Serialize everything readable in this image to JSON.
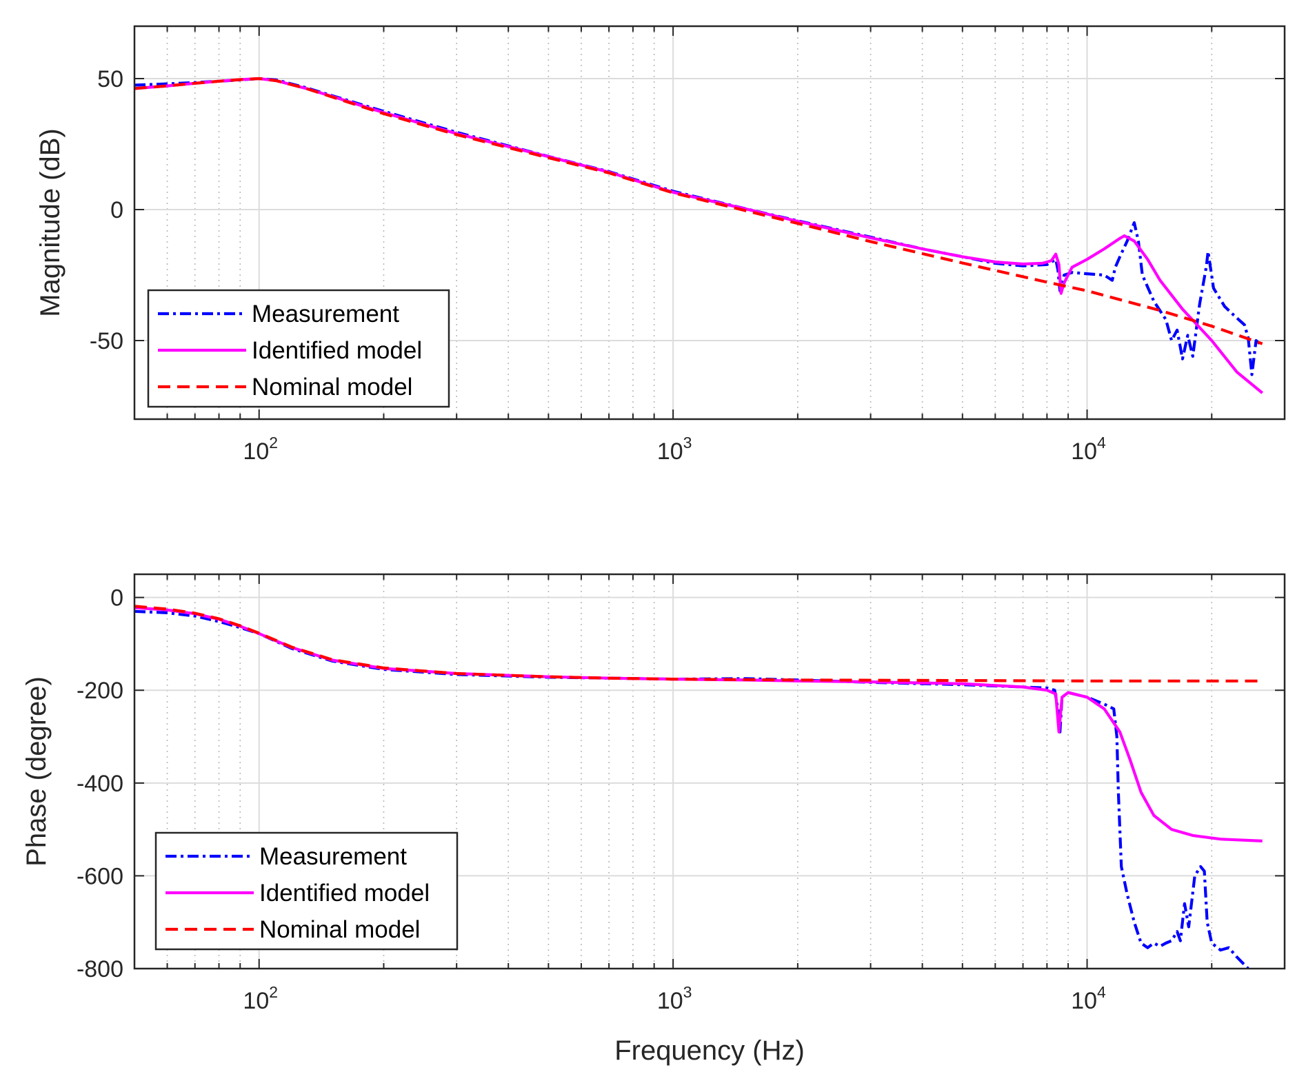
{
  "chart_data": [
    {
      "type": "line",
      "name": "magnitude",
      "xscale": "log",
      "xlim": [
        50,
        30000
      ],
      "ylim": [
        -80,
        70
      ],
      "xlabel": "",
      "ylabel": "Magnitude (dB)",
      "xticks": [
        100,
        1000,
        10000
      ],
      "xtick_labels": [
        {
          "base": "10",
          "exp": "2"
        },
        {
          "base": "10",
          "exp": "3"
        },
        {
          "base": "10",
          "exp": "4"
        }
      ],
      "yticks": [
        50,
        0,
        -50
      ],
      "ytick_labels": [
        "50",
        "0",
        "-50"
      ],
      "grid": true,
      "legend_location": "lower-left",
      "series": [
        {
          "name": "Measurement",
          "color": "#0000ff",
          "style": "dashdot",
          "points": [
            [
              50,
              47.5
            ],
            [
              60,
              48
            ],
            [
              70,
              48.5
            ],
            [
              80,
              49
            ],
            [
              90,
              49.5
            ],
            [
              100,
              50
            ],
            [
              110,
              49.5
            ],
            [
              130,
              46.5
            ],
            [
              150,
              43.5
            ],
            [
              200,
              37.5
            ],
            [
              300,
              29.5
            ],
            [
              500,
              20.3
            ],
            [
              700,
              14.5
            ],
            [
              1000,
              7
            ],
            [
              1500,
              0.3
            ],
            [
              2000,
              -4.3
            ],
            [
              3000,
              -10.5
            ],
            [
              4000,
              -15
            ],
            [
              5000,
              -18
            ],
            [
              6000,
              -20.5
            ],
            [
              7000,
              -21.5
            ],
            [
              8000,
              -21
            ],
            [
              8400,
              -19
            ],
            [
              8500,
              -23
            ],
            [
              8600,
              -31
            ],
            [
              8800,
              -25
            ],
            [
              9200,
              -24
            ],
            [
              10000,
              -24.5
            ],
            [
              11000,
              -25
            ],
            [
              11500,
              -27
            ],
            [
              11700,
              -22
            ],
            [
              12000,
              -18
            ],
            [
              12500,
              -12
            ],
            [
              13000,
              -5
            ],
            [
              13300,
              -12
            ],
            [
              13600,
              -25
            ],
            [
              14500,
              -35
            ],
            [
              15500,
              -42
            ],
            [
              16000,
              -50
            ],
            [
              16500,
              -46
            ],
            [
              17000,
              -57
            ],
            [
              17500,
              -48
            ],
            [
              18000,
              -56
            ],
            [
              18700,
              -36
            ],
            [
              19400,
              -22
            ],
            [
              19600,
              -16
            ],
            [
              20200,
              -30
            ],
            [
              21500,
              -37
            ],
            [
              22500,
              -40
            ],
            [
              24000,
              -44
            ],
            [
              24500,
              -49
            ],
            [
              25000,
              -63
            ],
            [
              25600,
              -50
            ],
            [
              26500,
              -52
            ]
          ]
        },
        {
          "name": "Identified model",
          "color": "#ff00ff",
          "style": "solid",
          "points": [
            [
              50,
              46.2
            ],
            [
              60,
              47.2
            ],
            [
              70,
              48.2
            ],
            [
              80,
              49
            ],
            [
              90,
              49.6
            ],
            [
              100,
              50
            ],
            [
              110,
              49.2
            ],
            [
              130,
              46.2
            ],
            [
              150,
              43.2
            ],
            [
              200,
              37
            ],
            [
              300,
              29
            ],
            [
              500,
              20.2
            ],
            [
              700,
              14.3
            ],
            [
              1000,
              6.6
            ],
            [
              1500,
              0.2
            ],
            [
              2000,
              -4.5
            ],
            [
              3000,
              -10.8
            ],
            [
              4000,
              -15
            ],
            [
              5000,
              -18
            ],
            [
              6000,
              -20
            ],
            [
              7000,
              -20.8
            ],
            [
              7800,
              -20.5
            ],
            [
              8200,
              -19.5
            ],
            [
              8400,
              -17
            ],
            [
              8550,
              -21
            ],
            [
              8650,
              -32
            ],
            [
              8800,
              -28
            ],
            [
              9200,
              -22
            ],
            [
              10000,
              -19
            ],
            [
              11000,
              -15
            ],
            [
              12000,
              -11
            ],
            [
              12300,
              -10
            ],
            [
              13000,
              -12
            ],
            [
              14000,
              -19
            ],
            [
              15000,
              -27
            ],
            [
              17000,
              -38
            ],
            [
              20000,
              -50
            ],
            [
              23000,
              -62
            ],
            [
              26500,
              -70
            ]
          ]
        },
        {
          "name": "Nominal model",
          "color": "#ff0000",
          "style": "dashed",
          "points": [
            [
              50,
              46.2
            ],
            [
              60,
              47.2
            ],
            [
              70,
              48.2
            ],
            [
              80,
              49
            ],
            [
              90,
              49.6
            ],
            [
              100,
              50
            ],
            [
              110,
              49.2
            ],
            [
              130,
              46.2
            ],
            [
              150,
              43
            ],
            [
              200,
              36.6
            ],
            [
              300,
              28.6
            ],
            [
              500,
              19.8
            ],
            [
              700,
              14
            ],
            [
              1000,
              6.4
            ],
            [
              2000,
              -5.3
            ],
            [
              3000,
              -12.2
            ],
            [
              5000,
              -20.4
            ],
            [
              8000,
              -27.7
            ],
            [
              10000,
              -31
            ],
            [
              15000,
              -38.5
            ],
            [
              20000,
              -44.5
            ],
            [
              26500,
              -51.2
            ]
          ]
        }
      ]
    },
    {
      "type": "line",
      "name": "phase",
      "xscale": "log",
      "xlim": [
        50,
        30000
      ],
      "ylim": [
        -800,
        50
      ],
      "xlabel": "Frequency (Hz)",
      "ylabel": "Phase (degree)",
      "xticks": [
        100,
        1000,
        10000
      ],
      "xtick_labels": [
        {
          "base": "10",
          "exp": "2"
        },
        {
          "base": "10",
          "exp": "3"
        },
        {
          "base": "10",
          "exp": "4"
        }
      ],
      "yticks": [
        0,
        -200,
        -400,
        -600,
        -800
      ],
      "ytick_labels": [
        "0",
        "-200",
        "-400",
        "-600",
        "-800"
      ],
      "grid": true,
      "legend_location": "lower-left",
      "series": [
        {
          "name": "Measurement",
          "color": "#0000ff",
          "style": "dashdot",
          "points": [
            [
              50,
              -30
            ],
            [
              60,
              -33
            ],
            [
              70,
              -40
            ],
            [
              80,
              -52
            ],
            [
              90,
              -65
            ],
            [
              100,
              -78
            ],
            [
              120,
              -110
            ],
            [
              150,
              -137
            ],
            [
              200,
              -155
            ],
            [
              300,
              -166
            ],
            [
              500,
              -172
            ],
            [
              700,
              -174
            ],
            [
              1000,
              -176
            ],
            [
              1500,
              -175
            ],
            [
              2000,
              -178
            ],
            [
              3000,
              -183
            ],
            [
              5000,
              -188
            ],
            [
              7000,
              -193
            ],
            [
              8000,
              -195
            ],
            [
              8350,
              -200
            ],
            [
              8500,
              -240
            ],
            [
              8600,
              -290
            ],
            [
              8700,
              -215
            ],
            [
              9000,
              -205
            ],
            [
              10000,
              -215
            ],
            [
              11000,
              -230
            ],
            [
              11600,
              -240
            ],
            [
              11800,
              -300
            ],
            [
              11900,
              -420
            ],
            [
              12100,
              -580
            ],
            [
              12500,
              -640
            ],
            [
              13000,
              -700
            ],
            [
              13500,
              -745
            ],
            [
              14000,
              -755
            ],
            [
              14500,
              -745
            ],
            [
              15000,
              -752
            ],
            [
              15500,
              -745
            ],
            [
              16000,
              -740
            ],
            [
              16500,
              -720
            ],
            [
              16800,
              -740
            ],
            [
              17200,
              -660
            ],
            [
              17600,
              -710
            ],
            [
              18200,
              -600
            ],
            [
              18800,
              -580
            ],
            [
              19200,
              -590
            ],
            [
              19500,
              -700
            ],
            [
              20000,
              -745
            ],
            [
              21000,
              -760
            ],
            [
              22000,
              -755
            ],
            [
              23000,
              -775
            ],
            [
              24500,
              -800
            ]
          ]
        },
        {
          "name": "Identified model",
          "color": "#ff00ff",
          "style": "solid",
          "points": [
            [
              50,
              -22
            ],
            [
              60,
              -27
            ],
            [
              70,
              -35
            ],
            [
              80,
              -47
            ],
            [
              90,
              -62
            ],
            [
              100,
              -78
            ],
            [
              120,
              -108
            ],
            [
              150,
              -135
            ],
            [
              200,
              -153
            ],
            [
              300,
              -164
            ],
            [
              500,
              -171
            ],
            [
              700,
              -174
            ],
            [
              1000,
              -176
            ],
            [
              1500,
              -178
            ],
            [
              2000,
              -180
            ],
            [
              3000,
              -182
            ],
            [
              5000,
              -186
            ],
            [
              7000,
              -193
            ],
            [
              8000,
              -200
            ],
            [
              8400,
              -208
            ],
            [
              8550,
              -290
            ],
            [
              8700,
              -215
            ],
            [
              9000,
              -205
            ],
            [
              10000,
              -215
            ],
            [
              11000,
              -240
            ],
            [
              12000,
              -290
            ],
            [
              12700,
              -350
            ],
            [
              13500,
              -420
            ],
            [
              14500,
              -470
            ],
            [
              16000,
              -500
            ],
            [
              18000,
              -513
            ],
            [
              21000,
              -521
            ],
            [
              26500,
              -525
            ]
          ]
        },
        {
          "name": "Nominal model",
          "color": "#ff0000",
          "style": "dashed",
          "points": [
            [
              50,
              -19
            ],
            [
              60,
              -25
            ],
            [
              70,
              -34
            ],
            [
              80,
              -46
            ],
            [
              90,
              -61
            ],
            [
              100,
              -77
            ],
            [
              120,
              -107
            ],
            [
              150,
              -134
            ],
            [
              200,
              -152
            ],
            [
              300,
              -164
            ],
            [
              500,
              -171
            ],
            [
              700,
              -174
            ],
            [
              1000,
              -176
            ],
            [
              2000,
              -178
            ],
            [
              5000,
              -179
            ],
            [
              10000,
              -180
            ],
            [
              26500,
              -180
            ]
          ]
        }
      ]
    }
  ]
}
